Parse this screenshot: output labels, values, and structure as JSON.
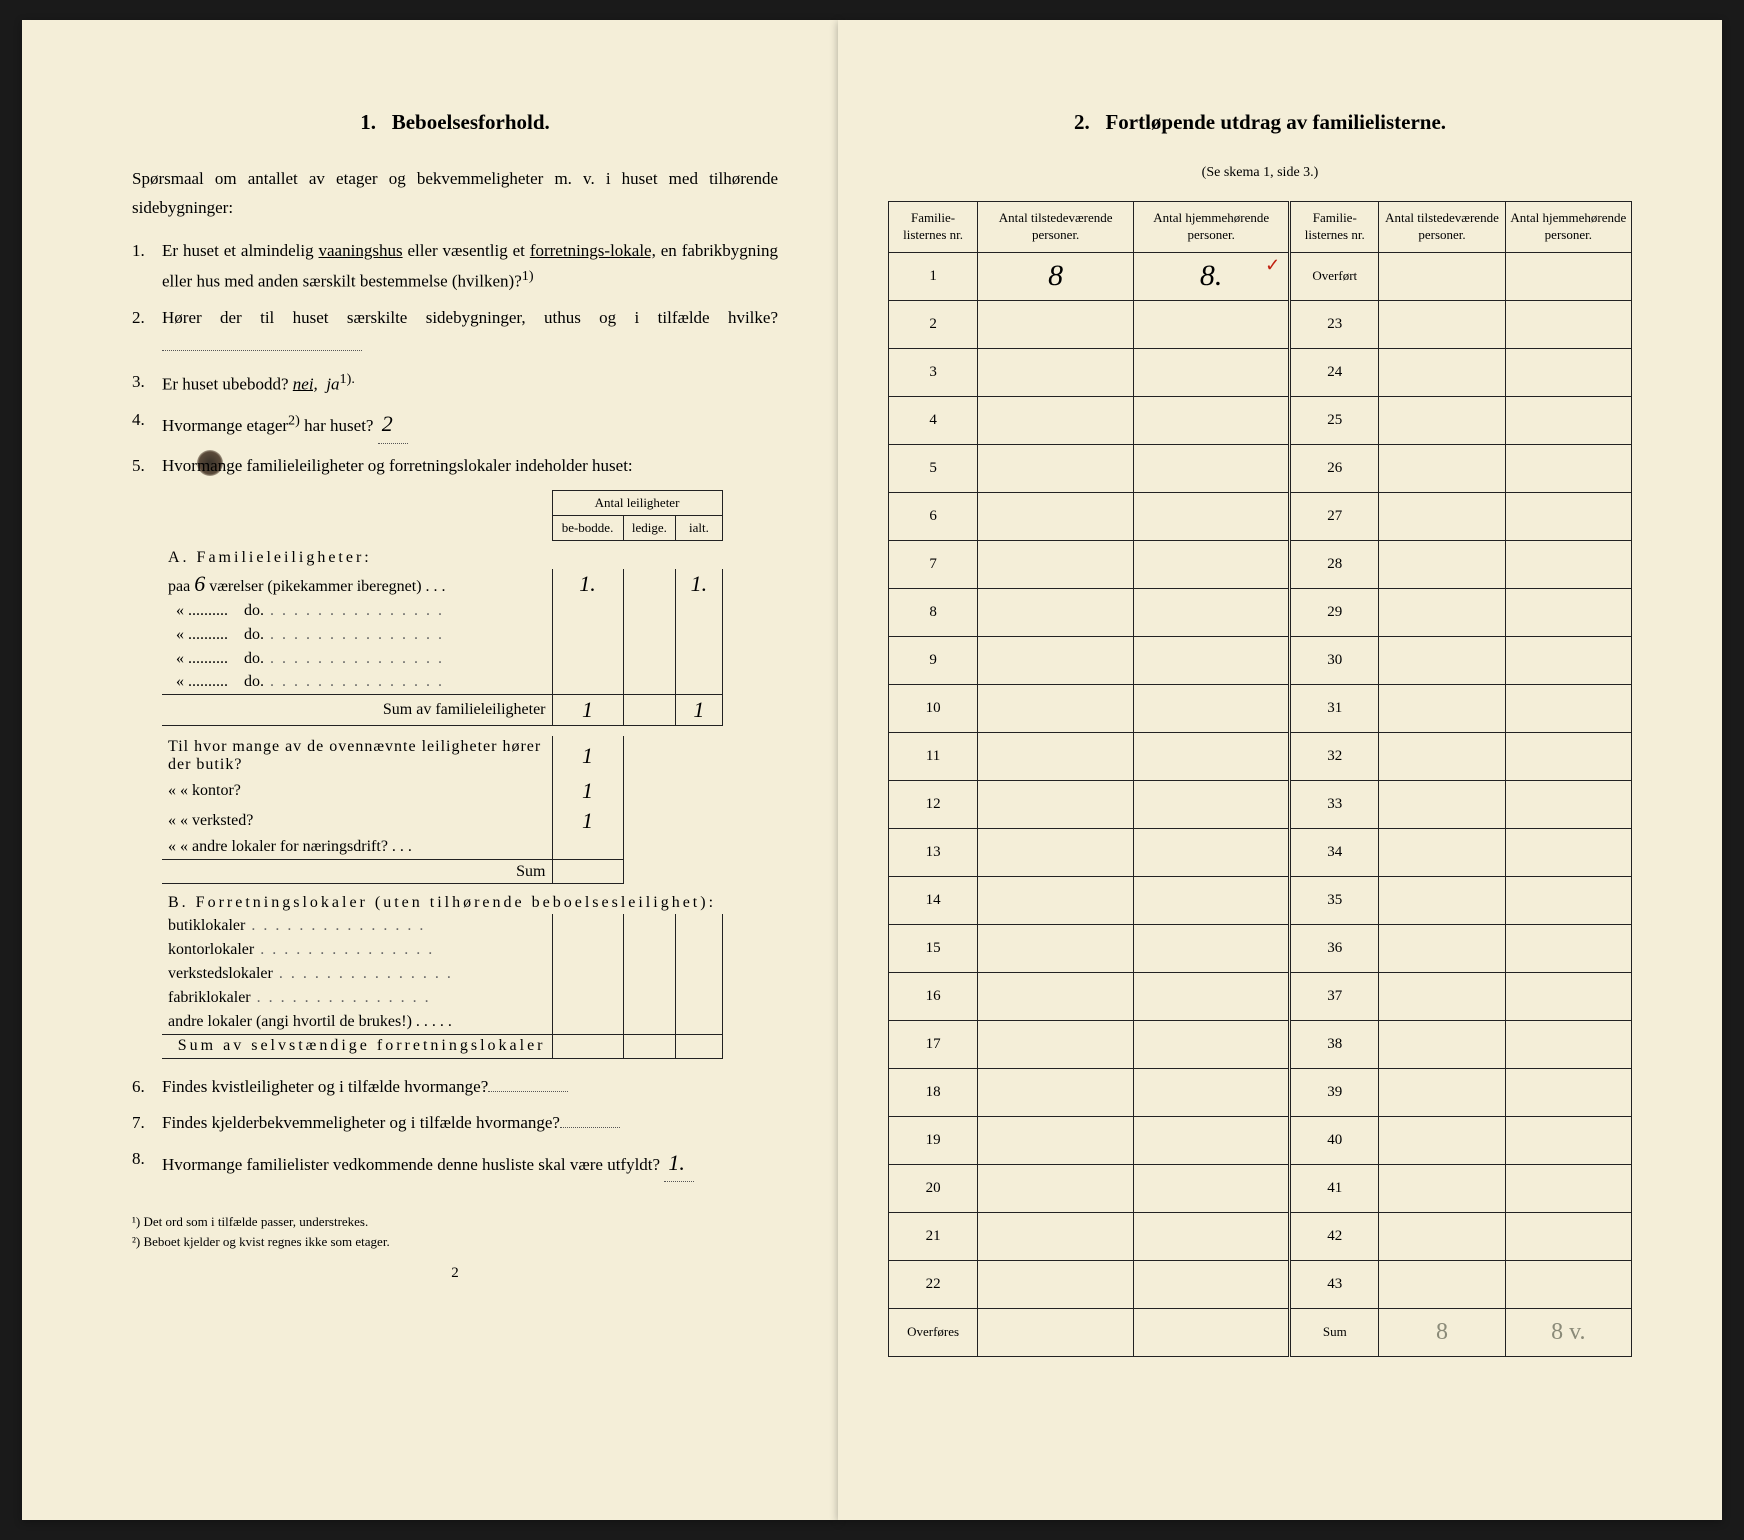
{
  "left": {
    "section_num": "1.",
    "section_title": "Beboelsesforhold.",
    "intro": "Spørsmaal om antallet av etager og bekvemmeligheter m. v. i huset med tilhørende sidebygninger:",
    "q1": {
      "num": "1.",
      "text_a": "Er huset et almindelig ",
      "underlined_a": "vaaningshus",
      "text_b": " eller væsentlig et ",
      "underlined_b": "forretnings-lokale,",
      "text_c": " en fabrikbygning eller hus med anden særskilt bestemmelse (hvilken)?",
      "sup": "1)"
    },
    "q2": {
      "num": "2.",
      "text": "Hører der til huset særskilte sidebygninger, uthus og i tilfælde hvilke?"
    },
    "q3": {
      "num": "3.",
      "text_a": "Er huset ubebodd? ",
      "nei": "nei,",
      "ja": "ja",
      "sup": "1).",
      "hand_strike": "—"
    },
    "q4": {
      "num": "4.",
      "text_a": "Hvormange etager",
      "sup": "2)",
      "text_b": " har huset?",
      "hand": "2"
    },
    "q5": {
      "num": "5.",
      "text": "Hvormange familieleiligheter og forretningslokaler indeholder huset:"
    },
    "innerhead": {
      "title": "Antal leiligheter",
      "c1": "be-bodde.",
      "c2": "ledige.",
      "c3": "ialt."
    },
    "A_label": "A. Familieleiligheter:",
    "A_rows": {
      "r1": {
        "text_a": "paa ",
        "hand_num": "6",
        "text_b": " værelser (pikekammer iberegnet) . . .",
        "v1": "1.",
        "v3": "1."
      },
      "r2": "do.",
      "r3": "do.",
      "r4": "do.",
      "r5": "do."
    },
    "A_sum": {
      "label": "Sum av familieleiligheter",
      "v1": "1",
      "v3": "1"
    },
    "mid": {
      "q_a": "Til hvor mange av de ovennævnte leiligheter hører der butik?",
      "q_b": "«    «  kontor?",
      "q_c": "«    «  verksted?",
      "q_d": "«    «  andre lokaler for næringsdrift? . . .",
      "sum": "Sum",
      "hand": "1"
    },
    "B_label": "B. Forretningslokaler (uten tilhørende beboelsesleilighet):",
    "B_rows": {
      "r1": "butiklokaler",
      "r2": "kontorlokaler",
      "r3": "verkstedslokaler",
      "r4": "fabriklokaler",
      "r5": "andre lokaler (angi hvortil de brukes!)"
    },
    "B_sum": "Sum av selvstændige forretningslokaler",
    "q6": {
      "num": "6.",
      "text": "Findes kvistleiligheter og i tilfælde hvormange?"
    },
    "q7": {
      "num": "7.",
      "text": "Findes kjelderbekvemmeligheter og i tilfælde hvormange?"
    },
    "q8": {
      "num": "8.",
      "text_a": "Hvormange familielister vedkommende denne husliste skal være utfyldt?",
      "hand": "1."
    },
    "foot1": "¹) Det ord som i tilfælde passer, understrekes.",
    "foot2": "²) Beboet kjelder og kvist regnes ikke som etager.",
    "pagenum": "2"
  },
  "right": {
    "section_num": "2.",
    "section_title": "Fortløpende utdrag av familielisterne.",
    "subtitle": "(Se skema 1, side 3.)",
    "headers": {
      "c1": "Familie-listernes nr.",
      "c2": "Antal tilstedeværende personer.",
      "c3": "Antal hjemmehørende personer.",
      "c4": "Familie-listernes nr.",
      "c5": "Antal tilstedeværende personer.",
      "c6": "Antal hjemmehørende personer."
    },
    "row1": {
      "n": "1",
      "v2": "8",
      "v3": "8.",
      "r4": "Overført",
      "red": "✓"
    },
    "left_nums": [
      "2",
      "3",
      "4",
      "5",
      "6",
      "7",
      "8",
      "9",
      "10",
      "11",
      "12",
      "13",
      "14",
      "15",
      "16",
      "17",
      "18",
      "19",
      "20",
      "21",
      "22"
    ],
    "right_nums": [
      "23",
      "24",
      "25",
      "26",
      "27",
      "28",
      "29",
      "30",
      "31",
      "32",
      "33",
      "34",
      "35",
      "36",
      "37",
      "38",
      "39",
      "40",
      "41",
      "42",
      "43"
    ],
    "lastrow": {
      "l": "Overføres",
      "r": "Sum",
      "s1": "8",
      "s2": "8 v."
    }
  },
  "colors": {
    "paper": "#f4eed8",
    "ink": "#1a1a1a",
    "hand": "#3a3a3a",
    "red": "#b82a1a",
    "pencil": "#8a8a78"
  }
}
